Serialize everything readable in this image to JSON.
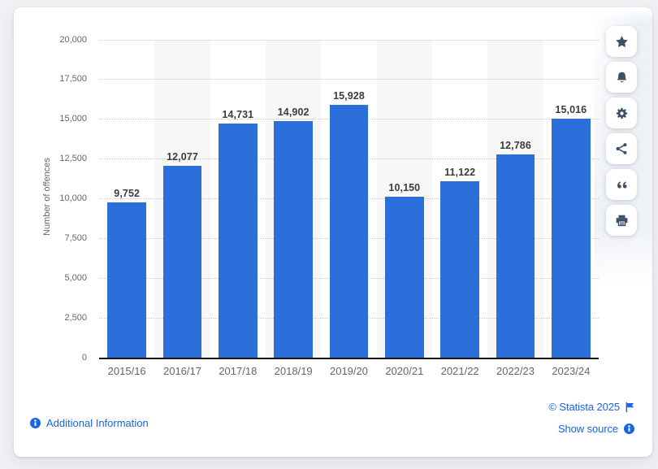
{
  "chart_data": {
    "type": "bar",
    "title": "",
    "xlabel": "",
    "ylabel": "Number of offences",
    "categories": [
      "2015/16",
      "2016/17",
      "2017/18",
      "2018/19",
      "2019/20",
      "2020/21",
      "2021/22",
      "2022/23",
      "2023/24"
    ],
    "values": [
      9752,
      12077,
      14731,
      14902,
      15928,
      10150,
      11122,
      12786,
      15016
    ],
    "value_labels": [
      "9,752",
      "12,077",
      "14,731",
      "14,902",
      "15,928",
      "10,150",
      "11,122",
      "12,786",
      "15,016"
    ],
    "ylim": [
      0,
      20000
    ],
    "ytick_values": [
      0,
      2500,
      5000,
      7500,
      10000,
      12500,
      15000,
      17500,
      20000
    ],
    "ytick_labels": [
      "0",
      "2,500",
      "5,000",
      "7,500",
      "10,000",
      "12,500",
      "15,000",
      "17,500",
      "20,000"
    ],
    "grid": "horizontal dotted gridlines, alternating light column bands",
    "legend": "none",
    "bar_color": "#2b70da"
  },
  "toolbar": {
    "items": [
      {
        "name": "favorite",
        "icon": "star-icon"
      },
      {
        "name": "alerts",
        "icon": "bell-icon"
      },
      {
        "name": "settings",
        "icon": "gear-icon"
      },
      {
        "name": "share",
        "icon": "share-icon"
      },
      {
        "name": "cite",
        "icon": "quote-icon"
      },
      {
        "name": "print",
        "icon": "printer-icon"
      }
    ]
  },
  "footer": {
    "additional_info_label": "Additional Information",
    "copyright_label": "© Statista 2025",
    "show_source_label": "Show source"
  },
  "colors": {
    "bar": "#2b70da",
    "link_blue": "#1a64e6",
    "icon_navy": "#3c5068",
    "page_background": "#eff1f4",
    "card_background": "#ffffff"
  }
}
